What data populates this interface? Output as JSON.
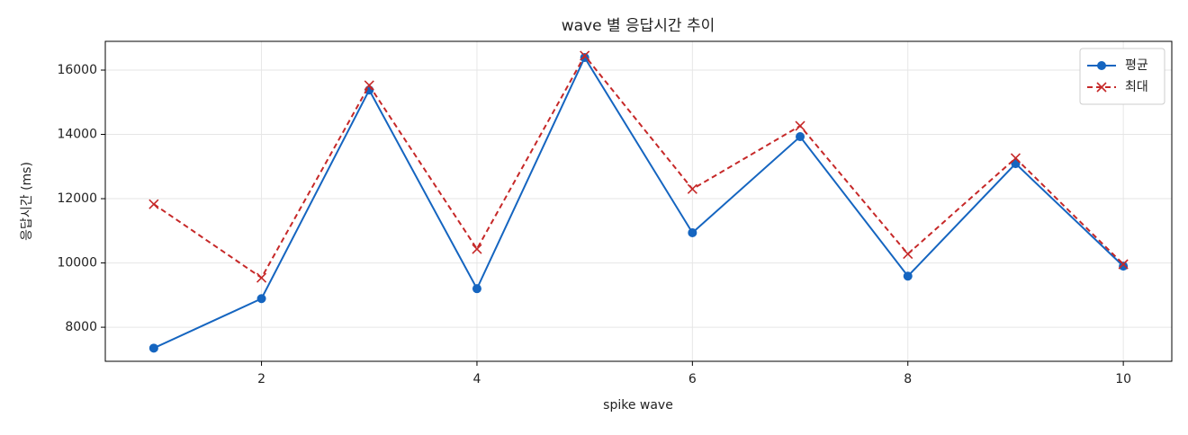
{
  "chart_data": {
    "type": "line",
    "title": "wave 별 응답시간 추이",
    "xlabel": "spike wave",
    "ylabel": "응답시간 (ms)",
    "x": [
      1,
      2,
      3,
      4,
      5,
      6,
      7,
      8,
      9,
      10
    ],
    "series": [
      {
        "name": "평균",
        "color": "#1565c0",
        "marker": "o",
        "dash": "solid",
        "values": [
          7350,
          8890,
          15380,
          9200,
          16390,
          10940,
          13930,
          9590,
          13090,
          9900
        ]
      },
      {
        "name": "최대",
        "color": "#c62828",
        "marker": "x",
        "dash": "dashed",
        "values": [
          11830,
          9540,
          15525,
          10435,
          16450,
          12300,
          14265,
          10280,
          13260,
          9960
        ]
      }
    ],
    "xlim": [
      0.55,
      10.45
    ],
    "ylim": [
      6940,
      16895
    ],
    "xticks": [
      2,
      4,
      6,
      8,
      10
    ],
    "yticks": [
      8000,
      10000,
      12000,
      14000,
      16000
    ],
    "grid": true,
    "legend": "upper right"
  }
}
